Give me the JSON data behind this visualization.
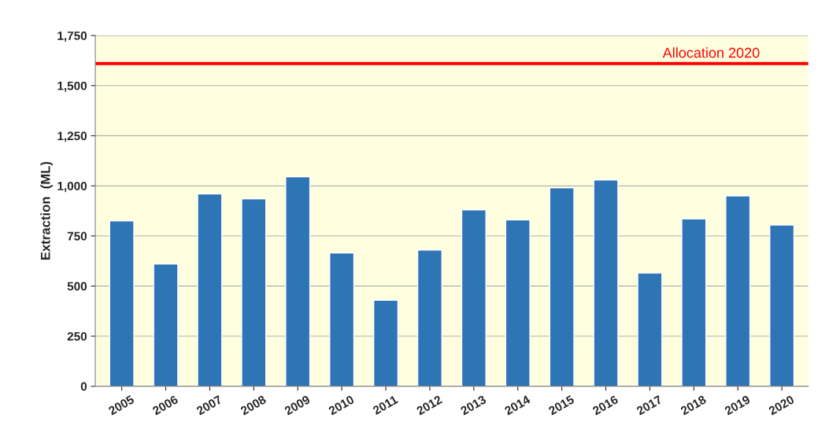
{
  "chart_data": {
    "type": "bar",
    "ylabel": "Extraction  (ML)",
    "categories": [
      "2005",
      "2006",
      "2007",
      "2008",
      "2009",
      "2010",
      "2011",
      "2012",
      "2013",
      "2014",
      "2015",
      "2016",
      "2017",
      "2018",
      "2019",
      "2020"
    ],
    "values": [
      825,
      610,
      960,
      935,
      1045,
      665,
      430,
      680,
      880,
      830,
      990,
      1030,
      565,
      835,
      950,
      805
    ],
    "color": "#2e75b6",
    "ylim": [
      0,
      1750
    ],
    "yticks": [
      {
        "value": 0,
        "label": "0"
      },
      {
        "value": 250,
        "label": "250"
      },
      {
        "value": 500,
        "label": "500"
      },
      {
        "value": 750,
        "label": "750"
      },
      {
        "value": 1000,
        "label": "1,000"
      },
      {
        "value": 1250,
        "label": "1,250"
      },
      {
        "value": 1500,
        "label": "1,500"
      },
      {
        "value": 1750,
        "label": "1,750"
      }
    ],
    "grid": "y",
    "ref_lines": [
      {
        "axis": "y",
        "value": 1610,
        "label": "Allocation 2020",
        "color": "#ff0000"
      }
    ]
  }
}
